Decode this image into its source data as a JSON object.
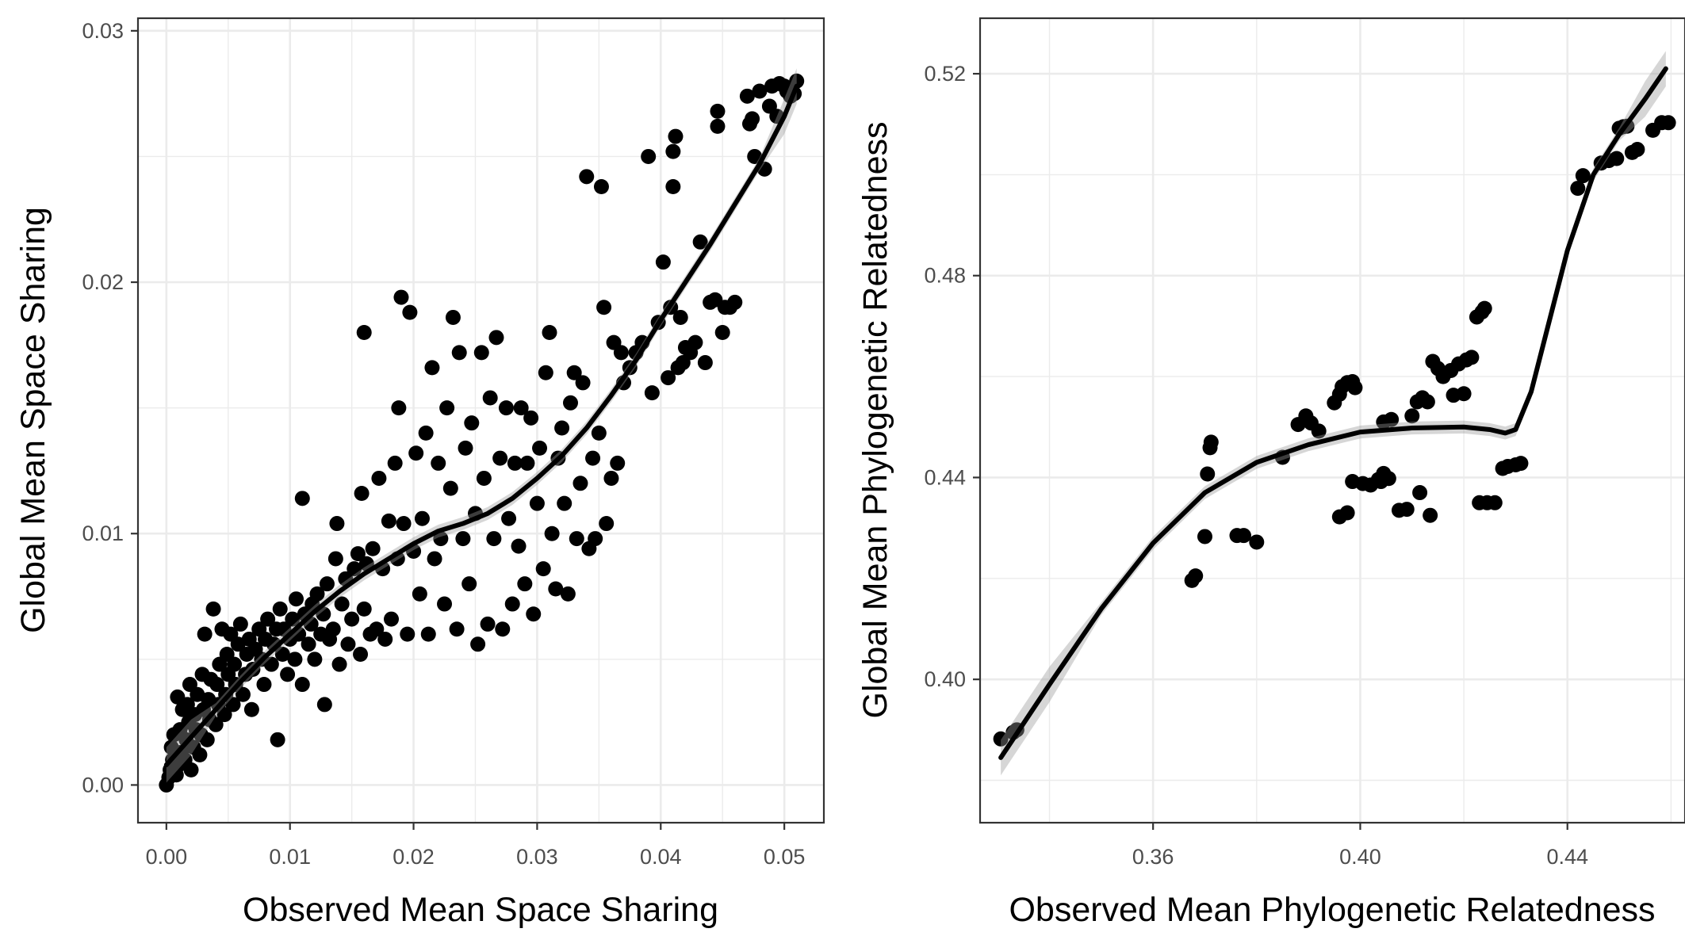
{
  "chart_data": [
    {
      "type": "scatter",
      "title": "",
      "xlabel": "Observed Mean Space Sharing",
      "ylabel": "Global Mean Space Sharing",
      "xlim": [
        -0.0023,
        0.0532
      ],
      "ylim": [
        -0.0015,
        0.0305
      ],
      "x_ticks": [
        0.0,
        0.01,
        0.02,
        0.03,
        0.04,
        0.05
      ],
      "x_tick_labels": [
        "0.00",
        "0.01",
        "0.02",
        "0.03",
        "0.04",
        "0.05"
      ],
      "y_ticks": [
        0.0,
        0.01,
        0.02,
        0.03
      ],
      "y_tick_labels": [
        "0.00",
        "0.01",
        "0.02",
        "0.03"
      ],
      "grid": true,
      "legend": "none",
      "point_color": "#000000",
      "points": [
        [
          0.0,
          0.0
        ],
        [
          0.0002,
          0.0003
        ],
        [
          0.0003,
          0.0006
        ],
        [
          0.0005,
          0.001
        ],
        [
          0.0004,
          0.0015
        ],
        [
          0.0006,
          0.002
        ],
        [
          0.0008,
          0.0004
        ],
        [
          0.001,
          0.0008
        ],
        [
          0.0012,
          0.0013
        ],
        [
          0.0011,
          0.0022
        ],
        [
          0.0013,
          0.003
        ],
        [
          0.0009,
          0.0035
        ],
        [
          0.0015,
          0.001
        ],
        [
          0.0016,
          0.0018
        ],
        [
          0.0018,
          0.0025
        ],
        [
          0.0017,
          0.0032
        ],
        [
          0.0019,
          0.004
        ],
        [
          0.002,
          0.0006
        ],
        [
          0.0022,
          0.0015
        ],
        [
          0.0024,
          0.0022
        ],
        [
          0.0023,
          0.0028
        ],
        [
          0.0025,
          0.0036
        ],
        [
          0.0027,
          0.0012
        ],
        [
          0.0028,
          0.002
        ],
        [
          0.003,
          0.003
        ],
        [
          0.0029,
          0.0044
        ],
        [
          0.0031,
          0.006
        ],
        [
          0.0033,
          0.0018
        ],
        [
          0.0035,
          0.0026
        ],
        [
          0.0034,
          0.0034
        ],
        [
          0.0036,
          0.0042
        ],
        [
          0.0038,
          0.007
        ],
        [
          0.004,
          0.0024
        ],
        [
          0.0042,
          0.0032
        ],
        [
          0.0041,
          0.004
        ],
        [
          0.0043,
          0.0048
        ],
        [
          0.0045,
          0.0062
        ],
        [
          0.0047,
          0.0028
        ],
        [
          0.0048,
          0.0036
        ],
        [
          0.005,
          0.0044
        ],
        [
          0.0049,
          0.0052
        ],
        [
          0.0052,
          0.006
        ],
        [
          0.0054,
          0.0032
        ],
        [
          0.0056,
          0.004
        ],
        [
          0.0055,
          0.0048
        ],
        [
          0.0058,
          0.0056
        ],
        [
          0.006,
          0.0064
        ],
        [
          0.0062,
          0.0036
        ],
        [
          0.0064,
          0.0044
        ],
        [
          0.0065,
          0.0052
        ],
        [
          0.0067,
          0.0058
        ],
        [
          0.0069,
          0.003
        ],
        [
          0.007,
          0.0046
        ],
        [
          0.0072,
          0.0054
        ],
        [
          0.0075,
          0.0062
        ],
        [
          0.0077,
          0.005
        ],
        [
          0.0079,
          0.004
        ],
        [
          0.008,
          0.0058
        ],
        [
          0.0082,
          0.0066
        ],
        [
          0.0085,
          0.0048
        ],
        [
          0.0087,
          0.0056
        ],
        [
          0.0089,
          0.0062
        ],
        [
          0.009,
          0.0018
        ],
        [
          0.0092,
          0.007
        ],
        [
          0.0094,
          0.0052
        ],
        [
          0.0095,
          0.0062
        ],
        [
          0.0098,
          0.0044
        ],
        [
          0.01,
          0.0058
        ],
        [
          0.0102,
          0.0066
        ],
        [
          0.0104,
          0.005
        ],
        [
          0.0105,
          0.0074
        ],
        [
          0.0107,
          0.006
        ],
        [
          0.011,
          0.004
        ],
        [
          0.0112,
          0.0068
        ],
        [
          0.0115,
          0.0056
        ],
        [
          0.0117,
          0.0064
        ],
        [
          0.011,
          0.0114
        ],
        [
          0.0118,
          0.0072
        ],
        [
          0.012,
          0.005
        ],
        [
          0.0122,
          0.0076
        ],
        [
          0.0125,
          0.006
        ],
        [
          0.0127,
          0.0068
        ],
        [
          0.0128,
          0.0032
        ],
        [
          0.013,
          0.008
        ],
        [
          0.0132,
          0.0058
        ],
        [
          0.0135,
          0.0062
        ],
        [
          0.0137,
          0.009
        ],
        [
          0.0138,
          0.0104
        ],
        [
          0.014,
          0.0048
        ],
        [
          0.0142,
          0.0072
        ],
        [
          0.0145,
          0.0082
        ],
        [
          0.0147,
          0.0056
        ],
        [
          0.015,
          0.0066
        ],
        [
          0.0152,
          0.0086
        ],
        [
          0.0155,
          0.0092
        ],
        [
          0.0157,
          0.0052
        ],
        [
          0.0158,
          0.0116
        ],
        [
          0.016,
          0.007
        ],
        [
          0.0162,
          0.0088
        ],
        [
          0.0165,
          0.006
        ],
        [
          0.016,
          0.018
        ],
        [
          0.0167,
          0.0094
        ],
        [
          0.017,
          0.0062
        ],
        [
          0.0172,
          0.0122
        ],
        [
          0.0175,
          0.0086
        ],
        [
          0.0177,
          0.0058
        ],
        [
          0.018,
          0.0105
        ],
        [
          0.0182,
          0.0066
        ],
        [
          0.0185,
          0.0128
        ],
        [
          0.0187,
          0.009
        ],
        [
          0.019,
          0.0194
        ],
        [
          0.0188,
          0.015
        ],
        [
          0.0192,
          0.0104
        ],
        [
          0.0195,
          0.006
        ],
        [
          0.0197,
          0.0188
        ],
        [
          0.02,
          0.0093
        ],
        [
          0.0202,
          0.0132
        ],
        [
          0.0205,
          0.0076
        ],
        [
          0.0207,
          0.0106
        ],
        [
          0.021,
          0.014
        ],
        [
          0.0212,
          0.006
        ],
        [
          0.0215,
          0.0166
        ],
        [
          0.0217,
          0.009
        ],
        [
          0.022,
          0.0128
        ],
        [
          0.0222,
          0.0098
        ],
        [
          0.0225,
          0.0072
        ],
        [
          0.0227,
          0.015
        ],
        [
          0.023,
          0.0118
        ],
        [
          0.0232,
          0.0186
        ],
        [
          0.0235,
          0.0062
        ],
        [
          0.0237,
          0.0172
        ],
        [
          0.024,
          0.0098
        ],
        [
          0.0242,
          0.0134
        ],
        [
          0.0245,
          0.008
        ],
        [
          0.0247,
          0.0144
        ],
        [
          0.025,
          0.0108
        ],
        [
          0.0252,
          0.0056
        ],
        [
          0.0255,
          0.0172
        ],
        [
          0.0257,
          0.0122
        ],
        [
          0.026,
          0.0064
        ],
        [
          0.0262,
          0.0154
        ],
        [
          0.0265,
          0.0098
        ],
        [
          0.0267,
          0.0178
        ],
        [
          0.027,
          0.013
        ],
        [
          0.0272,
          0.0062
        ],
        [
          0.0275,
          0.015
        ],
        [
          0.0277,
          0.0106
        ],
        [
          0.028,
          0.0072
        ],
        [
          0.0282,
          0.0128
        ],
        [
          0.0285,
          0.0095
        ],
        [
          0.0287,
          0.015
        ],
        [
          0.029,
          0.008
        ],
        [
          0.0292,
          0.0128
        ],
        [
          0.0295,
          0.0146
        ],
        [
          0.0297,
          0.0068
        ],
        [
          0.03,
          0.0112
        ],
        [
          0.0302,
          0.0134
        ],
        [
          0.0305,
          0.0086
        ],
        [
          0.0307,
          0.0164
        ],
        [
          0.031,
          0.018
        ],
        [
          0.0312,
          0.01
        ],
        [
          0.0315,
          0.0078
        ],
        [
          0.0317,
          0.013
        ],
        [
          0.032,
          0.0142
        ],
        [
          0.0322,
          0.0112
        ],
        [
          0.0325,
          0.0076
        ],
        [
          0.0327,
          0.0152
        ],
        [
          0.033,
          0.0164
        ],
        [
          0.0332,
          0.0098
        ],
        [
          0.0335,
          0.012
        ],
        [
          0.0337,
          0.016
        ],
        [
          0.034,
          0.0242
        ],
        [
          0.0342,
          0.0094
        ],
        [
          0.0345,
          0.013
        ],
        [
          0.0347,
          0.0098
        ],
        [
          0.035,
          0.014
        ],
        [
          0.0352,
          0.0238
        ],
        [
          0.0354,
          0.019
        ],
        [
          0.0356,
          0.0104
        ],
        [
          0.036,
          0.0122
        ],
        [
          0.0362,
          0.0176
        ],
        [
          0.0365,
          0.0128
        ],
        [
          0.0368,
          0.0172
        ],
        [
          0.037,
          0.016
        ],
        [
          0.0375,
          0.0166
        ],
        [
          0.038,
          0.0172
        ],
        [
          0.0385,
          0.0176
        ],
        [
          0.039,
          0.025
        ],
        [
          0.0393,
          0.0156
        ],
        [
          0.0398,
          0.0184
        ],
        [
          0.0402,
          0.0208
        ],
        [
          0.0406,
          0.0162
        ],
        [
          0.0408,
          0.019
        ],
        [
          0.041,
          0.0238
        ],
        [
          0.041,
          0.0252
        ],
        [
          0.0412,
          0.0258
        ],
        [
          0.0414,
          0.0166
        ],
        [
          0.0416,
          0.0186
        ],
        [
          0.0418,
          0.0168
        ],
        [
          0.042,
          0.0174
        ],
        [
          0.0424,
          0.0172
        ],
        [
          0.0428,
          0.0176
        ],
        [
          0.0432,
          0.0216
        ],
        [
          0.0436,
          0.0168
        ],
        [
          0.044,
          0.0192
        ],
        [
          0.0444,
          0.0193
        ],
        [
          0.0446,
          0.0262
        ],
        [
          0.0446,
          0.0268
        ],
        [
          0.045,
          0.018
        ],
        [
          0.0452,
          0.019
        ],
        [
          0.0456,
          0.019
        ],
        [
          0.046,
          0.0192
        ],
        [
          0.047,
          0.0274
        ],
        [
          0.0472,
          0.0263
        ],
        [
          0.0474,
          0.0265
        ],
        [
          0.0476,
          0.025
        ],
        [
          0.048,
          0.0276
        ],
        [
          0.0484,
          0.0245
        ],
        [
          0.0488,
          0.027
        ],
        [
          0.049,
          0.0278
        ],
        [
          0.0494,
          0.0266
        ],
        [
          0.0496,
          0.0279
        ],
        [
          0.05,
          0.0278
        ],
        [
          0.0502,
          0.0276
        ],
        [
          0.0505,
          0.0274
        ],
        [
          0.0508,
          0.0275
        ],
        [
          0.051,
          0.028
        ]
      ],
      "smooth_line": {
        "x": [
          0.0,
          0.002,
          0.004,
          0.006,
          0.008,
          0.01,
          0.012,
          0.014,
          0.016,
          0.018,
          0.02,
          0.022,
          0.024,
          0.026,
          0.028,
          0.03,
          0.032,
          0.034,
          0.036,
          0.038,
          0.04,
          0.042,
          0.044,
          0.046,
          0.048,
          0.05,
          0.051
        ],
        "y": [
          0.0008,
          0.0019,
          0.003,
          0.0041,
          0.0051,
          0.006,
          0.0069,
          0.0077,
          0.0084,
          0.009,
          0.0096,
          0.0101,
          0.0104,
          0.0108,
          0.0114,
          0.0122,
          0.0131,
          0.0142,
          0.0155,
          0.0169,
          0.0185,
          0.02,
          0.0215,
          0.0231,
          0.0247,
          0.0266,
          0.0278
        ]
      }
    },
    {
      "type": "scatter",
      "title": "",
      "xlabel": "Observed Mean Phylogenetic Relatedness",
      "ylabel": "Global Mean Phylogenetic Relatedness",
      "xlim": [
        0.3266,
        0.4627
      ],
      "ylim": [
        0.3716,
        0.531
      ],
      "x_ticks": [
        0.36,
        0.4,
        0.44
      ],
      "x_tick_labels": [
        "0.36",
        "0.40",
        "0.44"
      ],
      "y_ticks": [
        0.4,
        0.44,
        0.48,
        0.52
      ],
      "y_tick_labels": [
        "0.40",
        "0.44",
        "0.48",
        "0.52"
      ],
      "grid": true,
      "legend": "none",
      "point_color": "#000000",
      "points": [
        [
          0.3306,
          0.3882
        ],
        [
          0.333,
          0.3895
        ],
        [
          0.3337,
          0.39
        ],
        [
          0.3675,
          0.4196
        ],
        [
          0.3682,
          0.4205
        ],
        [
          0.37,
          0.4283
        ],
        [
          0.3705,
          0.4407
        ],
        [
          0.371,
          0.4459
        ],
        [
          0.3712,
          0.447
        ],
        [
          0.3762,
          0.4285
        ],
        [
          0.3775,
          0.4285
        ],
        [
          0.38,
          0.4272
        ],
        [
          0.385,
          0.444
        ],
        [
          0.388,
          0.4505
        ],
        [
          0.3895,
          0.4522
        ],
        [
          0.3905,
          0.4508
        ],
        [
          0.392,
          0.4492
        ],
        [
          0.395,
          0.4548
        ],
        [
          0.396,
          0.4565
        ],
        [
          0.3965,
          0.458
        ],
        [
          0.3975,
          0.4588
        ],
        [
          0.3985,
          0.459
        ],
        [
          0.399,
          0.4578
        ],
        [
          0.396,
          0.4322
        ],
        [
          0.3975,
          0.433
        ],
        [
          0.3985,
          0.4392
        ],
        [
          0.4005,
          0.4388
        ],
        [
          0.402,
          0.4385
        ],
        [
          0.4035,
          0.4396
        ],
        [
          0.4045,
          0.4408
        ],
        [
          0.404,
          0.4392
        ],
        [
          0.4055,
          0.4398
        ],
        [
          0.4045,
          0.451
        ],
        [
          0.406,
          0.4515
        ],
        [
          0.4075,
          0.4335
        ],
        [
          0.409,
          0.4337
        ],
        [
          0.41,
          0.4522
        ],
        [
          0.411,
          0.455
        ],
        [
          0.412,
          0.4558
        ],
        [
          0.413,
          0.455
        ],
        [
          0.4115,
          0.437
        ],
        [
          0.4135,
          0.4325
        ],
        [
          0.414,
          0.463
        ],
        [
          0.415,
          0.4616
        ],
        [
          0.416,
          0.46
        ],
        [
          0.4175,
          0.4612
        ],
        [
          0.418,
          0.4563
        ],
        [
          0.419,
          0.4625
        ],
        [
          0.42,
          0.4566
        ],
        [
          0.4205,
          0.4633
        ],
        [
          0.4215,
          0.4638
        ],
        [
          0.4225,
          0.4718
        ],
        [
          0.4235,
          0.4728
        ],
        [
          0.424,
          0.4735
        ],
        [
          0.423,
          0.435
        ],
        [
          0.4245,
          0.435
        ],
        [
          0.426,
          0.435
        ],
        [
          0.4275,
          0.4418
        ],
        [
          0.4285,
          0.4422
        ],
        [
          0.43,
          0.4425
        ],
        [
          0.431,
          0.4428
        ],
        [
          0.442,
          0.4973
        ],
        [
          0.443,
          0.4998
        ],
        [
          0.4465,
          0.5023
        ],
        [
          0.448,
          0.5028
        ],
        [
          0.4495,
          0.5032
        ],
        [
          0.45,
          0.5092
        ],
        [
          0.4508,
          0.5095
        ],
        [
          0.4515,
          0.5096
        ],
        [
          0.4525,
          0.5044
        ],
        [
          0.4535,
          0.505
        ],
        [
          0.4565,
          0.5088
        ],
        [
          0.4582,
          0.5103
        ],
        [
          0.4595,
          0.5103
        ]
      ],
      "smooth_line": {
        "x": [
          0.3306,
          0.34,
          0.35,
          0.36,
          0.37,
          0.38,
          0.39,
          0.4,
          0.41,
          0.42,
          0.425,
          0.428,
          0.43,
          0.433,
          0.436,
          0.44,
          0.445,
          0.45,
          0.455,
          0.459
        ],
        "y": [
          0.3845,
          0.399,
          0.414,
          0.427,
          0.437,
          0.443,
          0.4465,
          0.449,
          0.4498,
          0.45,
          0.4495,
          0.4488,
          0.4495,
          0.457,
          0.469,
          0.485,
          0.5,
          0.508,
          0.515,
          0.521
        ]
      }
    }
  ]
}
